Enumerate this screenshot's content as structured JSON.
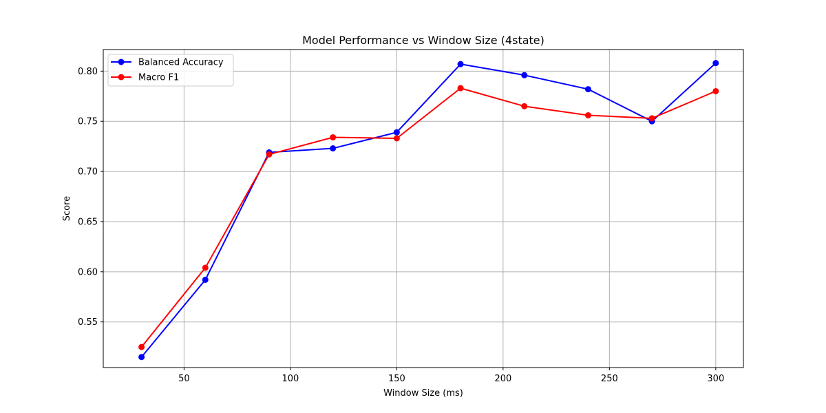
{
  "chart_data": {
    "type": "line",
    "title": "Model Performance vs Window Size (4state)",
    "xlabel": "Window Size (ms)",
    "ylabel": "Score",
    "x": [
      30,
      60,
      90,
      120,
      150,
      180,
      210,
      240,
      270,
      300
    ],
    "xlim": [
      12,
      313
    ],
    "ylim": [
      0.5045,
      0.8215
    ],
    "xticks": [
      50,
      100,
      150,
      200,
      250,
      300
    ],
    "xtick_labels": [
      "50",
      "100",
      "150",
      "200",
      "250",
      "300"
    ],
    "yticks": [
      0.55,
      0.6,
      0.65,
      0.7,
      0.75,
      0.8
    ],
    "ytick_labels": [
      "0.55",
      "0.60",
      "0.65",
      "0.70",
      "0.75",
      "0.80"
    ],
    "grid": true,
    "legend_position": "top-left",
    "series": [
      {
        "name": "Balanced Accuracy",
        "color": "#0000ff",
        "marker": "circle",
        "values": [
          0.515,
          0.592,
          0.719,
          0.723,
          0.739,
          0.807,
          0.796,
          0.782,
          0.75,
          0.808
        ]
      },
      {
        "name": "Macro F1",
        "color": "#ff0000",
        "marker": "circle",
        "values": [
          0.525,
          0.604,
          0.717,
          0.734,
          0.733,
          0.783,
          0.765,
          0.756,
          0.753,
          0.78
        ]
      }
    ]
  }
}
